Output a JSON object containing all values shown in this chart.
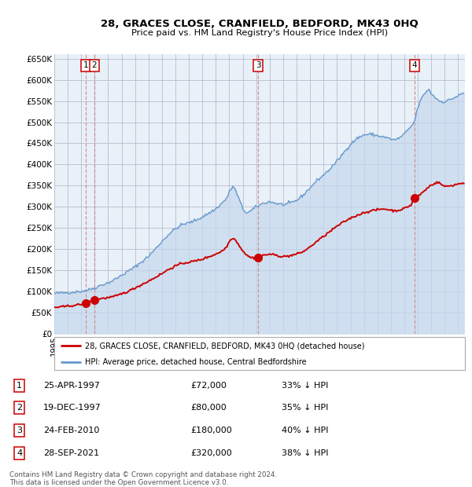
{
  "title1": "28, GRACES CLOSE, CRANFIELD, BEDFORD, MK43 0HQ",
  "title2": "Price paid vs. HM Land Registry's House Price Index (HPI)",
  "legend_red": "28, GRACES CLOSE, CRANFIELD, BEDFORD, MK43 0HQ (detached house)",
  "legend_blue": "HPI: Average price, detached house, Central Bedfordshire",
  "footer1": "Contains HM Land Registry data © Crown copyright and database right 2024.",
  "footer2": "This data is licensed under the Open Government Licence v3.0.",
  "sales": [
    {
      "num": 1,
      "date_str": "25-APR-1997",
      "date_x": 1997.32,
      "price": 72000,
      "pct": "33% ↓ HPI"
    },
    {
      "num": 2,
      "date_str": "19-DEC-1997",
      "date_x": 1997.97,
      "price": 80000,
      "pct": "35% ↓ HPI"
    },
    {
      "num": 3,
      "date_str": "24-FEB-2010",
      "date_x": 2010.14,
      "price": 180000,
      "pct": "40% ↓ HPI"
    },
    {
      "num": 4,
      "date_str": "28-SEP-2021",
      "date_x": 2021.74,
      "price": 320000,
      "pct": "38% ↓ HPI"
    }
  ],
  "ylim": [
    0,
    660000
  ],
  "xlim": [
    1995.0,
    2025.5
  ],
  "yticks": [
    0,
    50000,
    100000,
    150000,
    200000,
    250000,
    300000,
    350000,
    400000,
    450000,
    500000,
    550000,
    600000,
    650000
  ],
  "ytick_labels": [
    "£0",
    "£50K",
    "£100K",
    "£150K",
    "£200K",
    "£250K",
    "£300K",
    "£350K",
    "£400K",
    "£450K",
    "£500K",
    "£550K",
    "£600K",
    "£650K"
  ],
  "red_color": "#cc0000",
  "blue_color": "#6699cc",
  "blue_fill_color": "#c5d8ee",
  "bg_color": "#e8f0f8",
  "grid_color": "#bbbbcc",
  "vline_color": "#cc8888"
}
